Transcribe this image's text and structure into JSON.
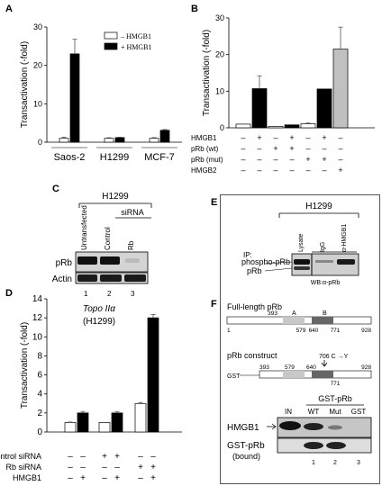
{
  "panels": {
    "A": "A",
    "B": "B",
    "C": "C",
    "D": "D",
    "E": "E",
    "F": "F"
  },
  "chart_data": [
    {
      "id": "A",
      "type": "bar",
      "ylabel": "Transactivation  (-fold)",
      "ylim": [
        0,
        30
      ],
      "yticks": [
        "0",
        "10",
        "20",
        "30"
      ],
      "categories": [
        "Saos-2",
        "H1299",
        "MCF-7"
      ],
      "series": [
        {
          "name": "– HMGB1",
          "color": "#ffffff",
          "values": [
            1.0,
            1.0,
            1.0
          ],
          "errors": [
            0.3,
            0.15,
            0.2
          ]
        },
        {
          "name": "+ HMGB1",
          "color": "#000000",
          "values": [
            23,
            1.2,
            3.1
          ],
          "errors": [
            3.8,
            0.1,
            0.2
          ]
        }
      ],
      "legend_position": "top-right"
    },
    {
      "id": "B",
      "type": "bar",
      "ylabel": "Transactivation  (-fold)",
      "ylim": [
        0,
        30
      ],
      "yticks": [
        "0",
        "10",
        "20",
        "30"
      ],
      "values": [
        1.0,
        10.7,
        0.4,
        0.8,
        1.1,
        10.6,
        21.5
      ],
      "colors": [
        "#ffffff",
        "#000000",
        "#ffffff",
        "#000000",
        "#ffffff",
        "#000000",
        "#c0c0c0"
      ],
      "errors": [
        0,
        3.5,
        0,
        0,
        0.2,
        0,
        6
      ],
      "conditions": [
        {
          "label": "HMGB1",
          "signs": [
            "–",
            "+",
            "–",
            "+",
            "–",
            "+",
            "–"
          ]
        },
        {
          "label": "pRb (wt)",
          "signs": [
            "–",
            "–",
            "+",
            "+",
            "–",
            "–",
            "–"
          ]
        },
        {
          "label": "pRb (mut)",
          "signs": [
            "–",
            "–",
            "–",
            "–",
            "+",
            "+",
            "–"
          ]
        },
        {
          "label": "HMGB2",
          "signs": [
            "–",
            "–",
            "–",
            "–",
            "–",
            "–",
            "+"
          ]
        }
      ]
    },
    {
      "id": "D",
      "type": "bar",
      "title": "Topo IIα",
      "subtitle": "(H1299)",
      "ylabel": "Transactivation  (-fold)",
      "ylim": [
        0,
        14
      ],
      "yticks": [
        "0",
        "2",
        "4",
        "6",
        "8",
        "10",
        "12",
        "14"
      ],
      "values": [
        1.0,
        2.0,
        1.0,
        2.0,
        3.0,
        12.0
      ],
      "colors": [
        "#ffffff",
        "#000000",
        "#ffffff",
        "#000000",
        "#ffffff",
        "#000000"
      ],
      "errors": [
        0.05,
        0.15,
        0,
        0.15,
        0.1,
        0.35
      ],
      "conditions": [
        {
          "label": "Control siRNA",
          "signs": [
            "–",
            "–",
            "+",
            "+",
            "–",
            "–"
          ]
        },
        {
          "label": "Rb siRNA",
          "signs": [
            "–",
            "–",
            "–",
            "–",
            "+",
            "+"
          ]
        },
        {
          "label": "HMGB1",
          "signs": [
            "–",
            "+",
            "–",
            "+",
            "–",
            "+"
          ]
        }
      ]
    }
  ],
  "blotC": {
    "cell_line": "H1299",
    "sirna": "siRNA",
    "lanes": [
      "Untransfected",
      "Control",
      "Rb"
    ],
    "rows": [
      "pRb",
      "Actin"
    ],
    "numbers": [
      "1",
      "2",
      "3"
    ]
  },
  "blotE": {
    "cell_line": "H1299",
    "ip": "IP:",
    "lanes": [
      "Lysate",
      "IgG",
      "α-HMGB1"
    ],
    "rows": [
      "phospho-pRb",
      "pRb"
    ],
    "wb": "WB:α-pRb"
  },
  "panelF": {
    "full_length": "Full-length pRb",
    "ticks_full": [
      "1",
      "393",
      "579",
      "640",
      "771",
      "928"
    ],
    "domain_a": "A",
    "domain_b": "B",
    "construct": "pRb construct",
    "mutation": "706 C →Y",
    "gst": "GST",
    "ticks_construct": [
      "393",
      "579",
      "640",
      "771",
      "928"
    ],
    "pulldown": "GST-pRb",
    "lanes": [
      "IN",
      "WT",
      "Mut",
      "GST"
    ],
    "rows": [
      "HMGB1",
      "GST-pRb",
      "(bound)"
    ],
    "numbers": [
      "1",
      "2",
      "3"
    ]
  }
}
